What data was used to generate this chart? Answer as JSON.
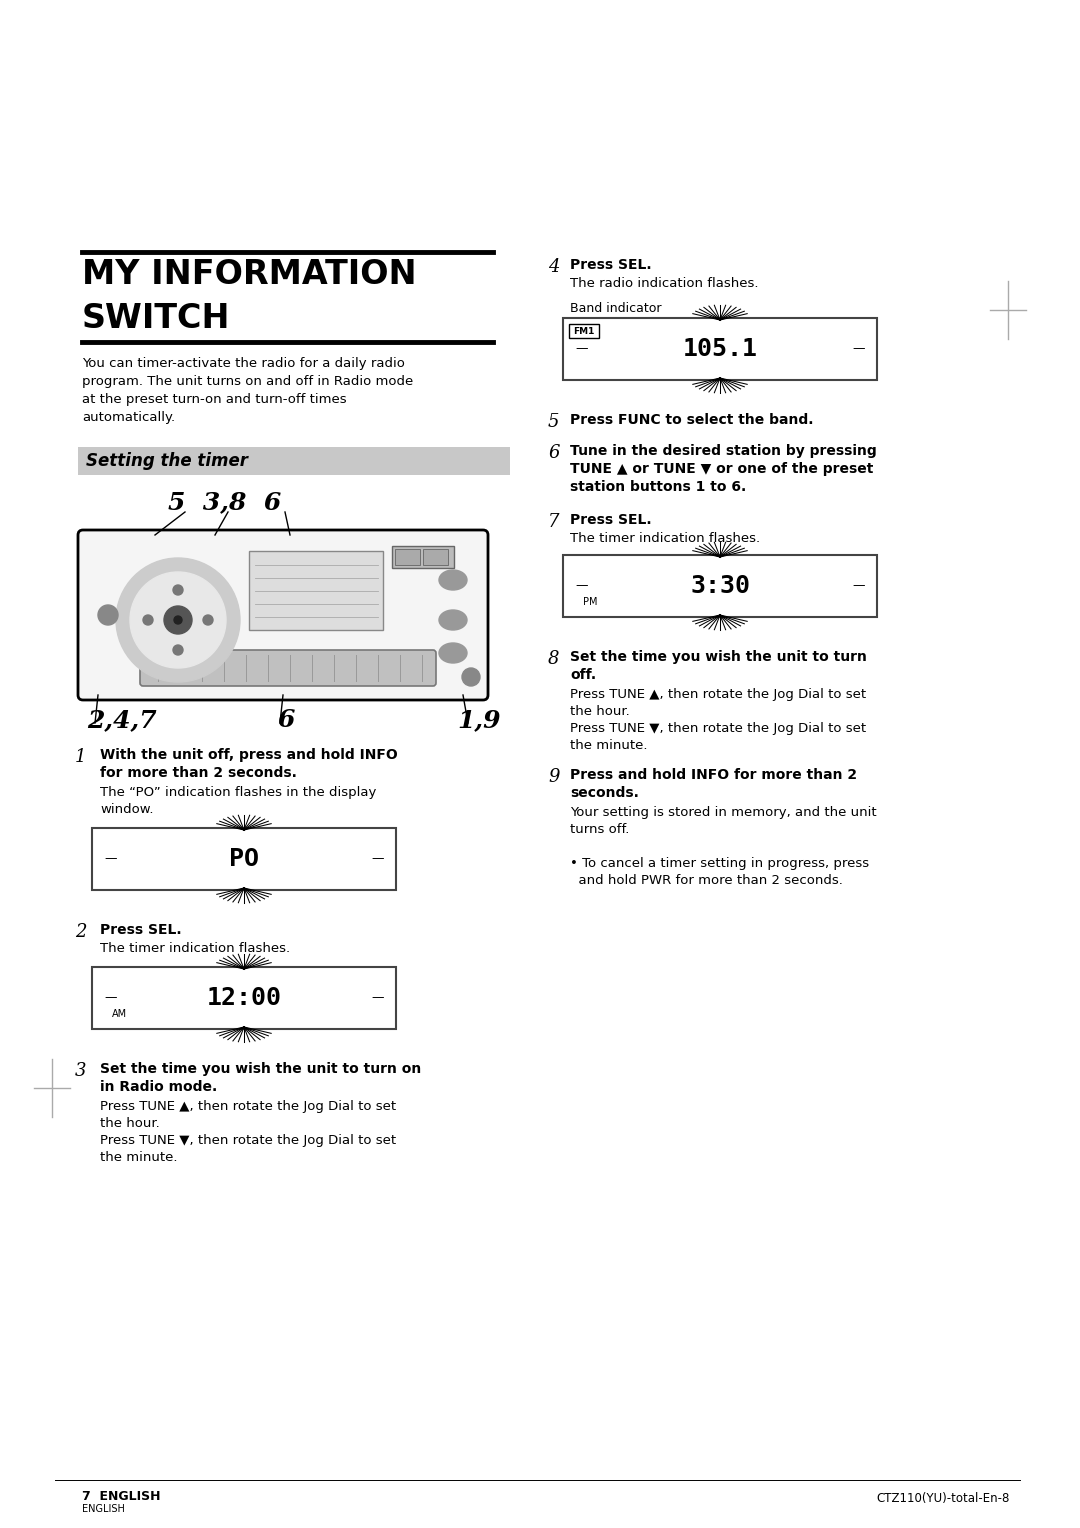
{
  "bg": "#ffffff",
  "title1": "MY INFORMATION",
  "title2": "SWITCH",
  "intro": "You can timer-activate the radio for a daily radio\nprogram. The unit turns on and off in Radio mode\nat the preset turn-on and turn-off times\nautomatically.",
  "sec_hdr": "Setting the timer",
  "lbl_top": "5  3,8  6",
  "lbl_bl": "2,4,7",
  "lbl_bm": "6",
  "lbl_br": "1,9",
  "s1_bold": "With the unit off, press and hold INFO\nfor more than 2 seconds.",
  "s1_norm": "The “PO” indication flashes in the display\nwindow.",
  "s1_disp": "PO",
  "s2_bold": "Press SEL.",
  "s2_norm": "The timer indication flashes.",
  "s2_disp": "12:00",
  "s2_ampm": "AM",
  "s3_bold": "Set the time you wish the unit to turn on\nin Radio mode.",
  "s3_norm": "Press TUNE ▲, then rotate the Jog Dial to set\nthe hour.\nPress TUNE ▼, then rotate the Jog Dial to set\nthe minute.",
  "s4_bold": "Press SEL.",
  "s4_norm": "The radio indication flashes.",
  "s4_band": "Band indicator",
  "s4_disp": "105.1",
  "s4_fm": "FM1",
  "s5_bold": "Press FUNC to select the band.",
  "s6_bold": "Tune in the desired station by pressing\nTUNE ▲ or TUNE ▼ or one of the preset\nstation buttons 1 to 6.",
  "s7_bold": "Press SEL.",
  "s7_norm": "The timer indication flashes.",
  "s7_disp": "3:30",
  "s7_ampm": "PM",
  "s8_bold": "Set the time you wish the unit to turn\noff.",
  "s8_norm": "Press TUNE ▲, then rotate the Jog Dial to set\nthe hour.\nPress TUNE ▼, then rotate the Jog Dial to set\nthe minute.",
  "s9_bold": "Press and hold INFO for more than 2\nseconds.",
  "s9_norm": "Your setting is stored in memory, and the unit\nturns off.",
  "bullet": "• To cancel a timer setting in progress, press\n  and hold PWR for more than 2 seconds.",
  "footer_l": "7  ENGLISH",
  "footer_r": "CTZ110(YU)-total-En-8"
}
